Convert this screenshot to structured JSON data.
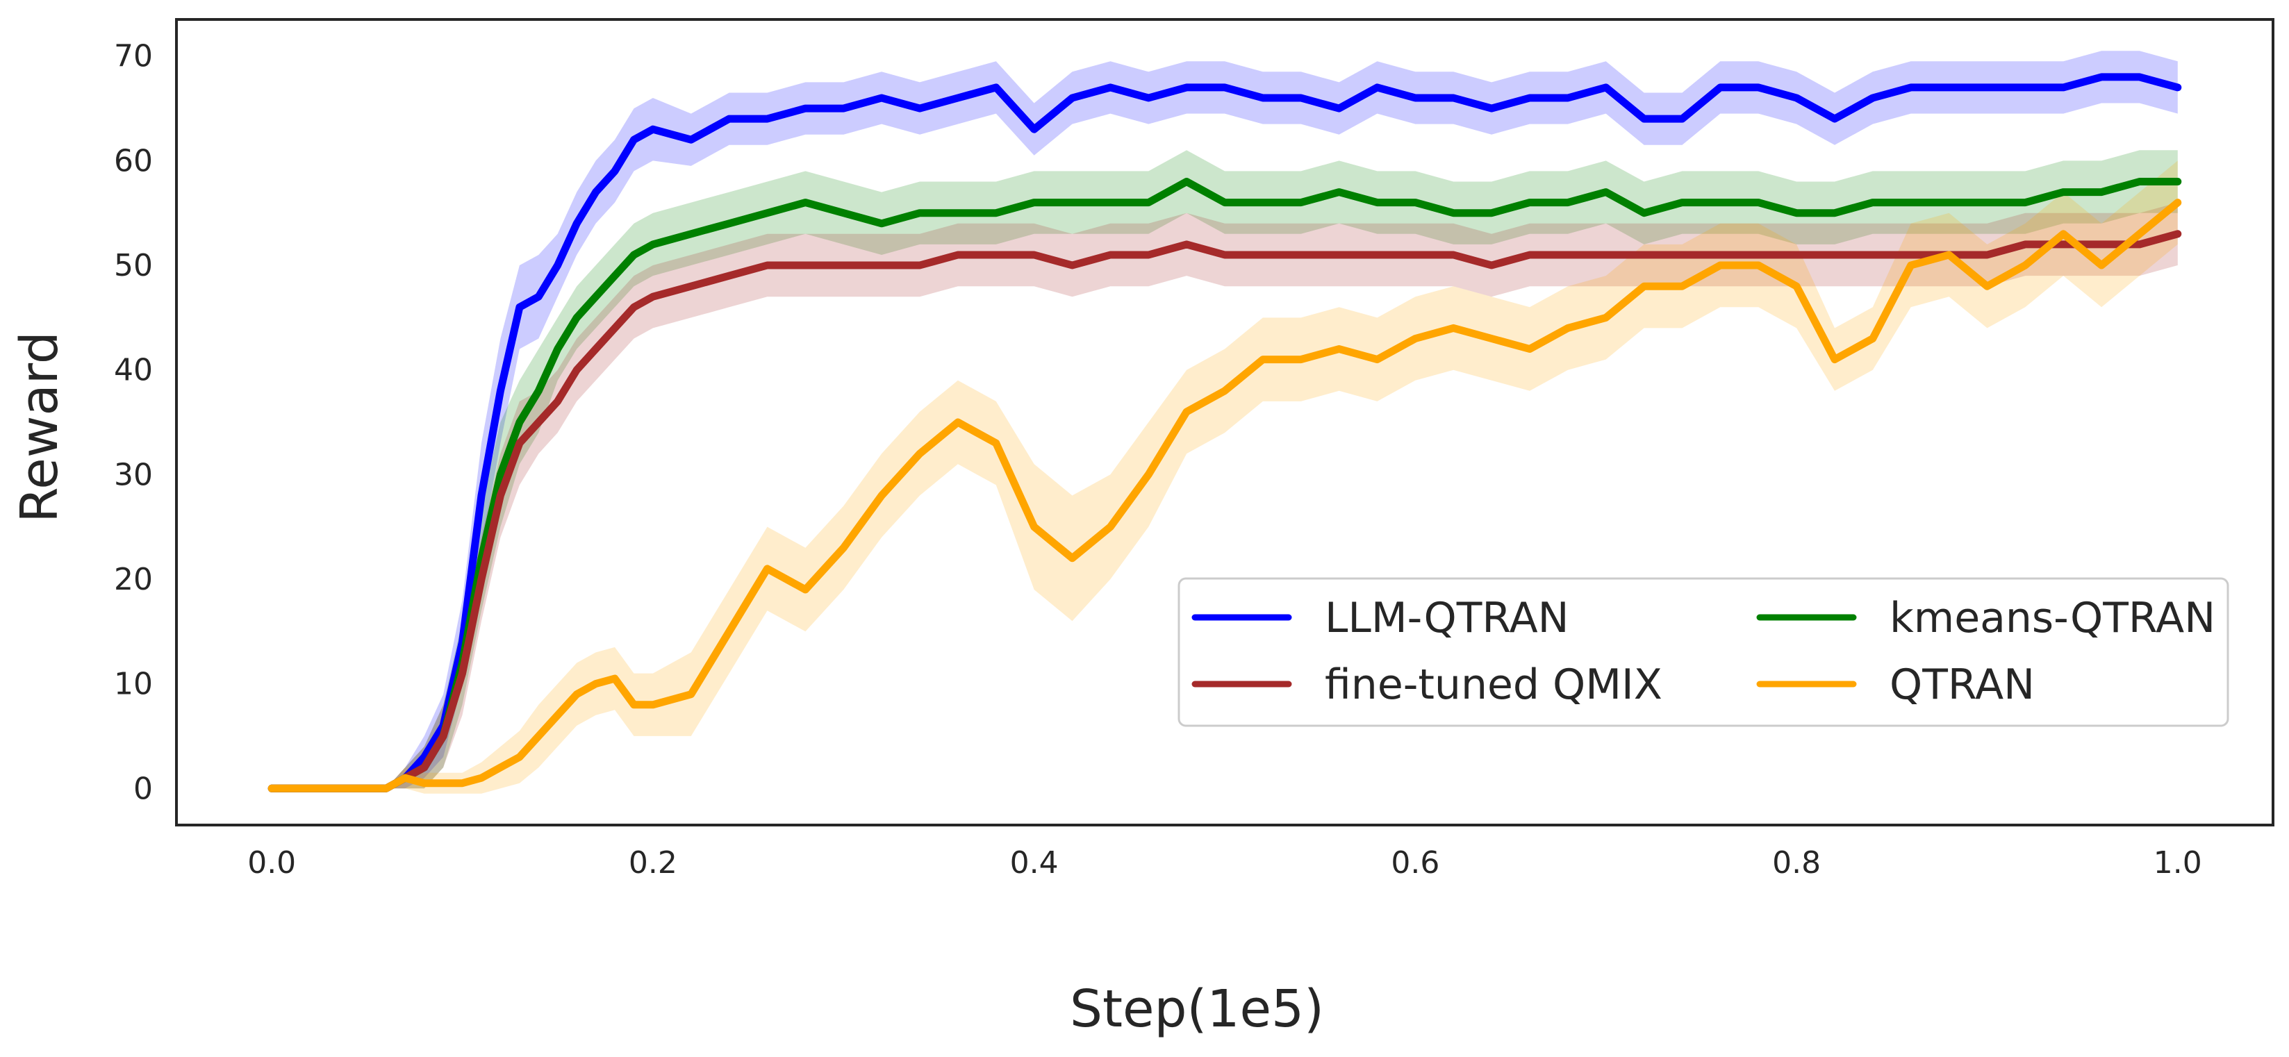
{
  "chart_data": {
    "type": "line",
    "title": "",
    "xlabel": "Step(1e5)",
    "ylabel": "Reward",
    "xlim": [
      -0.05,
      1.05
    ],
    "ylim": [
      -3.5,
      73.5
    ],
    "xticks": [
      0.0,
      0.2,
      0.4,
      0.6,
      0.8,
      1.0
    ],
    "xtick_labels": [
      "0.0",
      "0.2",
      "0.4",
      "0.6",
      "0.8",
      "1.0"
    ],
    "yticks": [
      0,
      10,
      20,
      30,
      40,
      50,
      60,
      70
    ],
    "ytick_labels": [
      "0",
      "10",
      "20",
      "30",
      "40",
      "50",
      "60",
      "70"
    ],
    "grid": false,
    "legend_position": "lower-right",
    "legend_columns": 2,
    "x": [
      0.0,
      0.02,
      0.04,
      0.06,
      0.07,
      0.08,
      0.09,
      0.1,
      0.11,
      0.12,
      0.13,
      0.14,
      0.15,
      0.16,
      0.17,
      0.18,
      0.19,
      0.2,
      0.22,
      0.24,
      0.26,
      0.28,
      0.3,
      0.32,
      0.34,
      0.36,
      0.38,
      0.4,
      0.42,
      0.44,
      0.46,
      0.48,
      0.5,
      0.52,
      0.54,
      0.56,
      0.58,
      0.6,
      0.62,
      0.64,
      0.66,
      0.68,
      0.7,
      0.72,
      0.74,
      0.76,
      0.78,
      0.8,
      0.82,
      0.84,
      0.86,
      0.88,
      0.9,
      0.92,
      0.94,
      0.96,
      0.98,
      1.0
    ],
    "series": [
      {
        "name": "LLM-QTRAN",
        "color": "#0000ff",
        "values": [
          0,
          0,
          0,
          0,
          1,
          3,
          6,
          14,
          28,
          38,
          46,
          47,
          50,
          54,
          57,
          59,
          62,
          63,
          62,
          64,
          64,
          65,
          65,
          66,
          65,
          66,
          67,
          63,
          66,
          67,
          66,
          67,
          67,
          66,
          66,
          65,
          67,
          66,
          66,
          65,
          66,
          66,
          67,
          64,
          64,
          67,
          67,
          66,
          64,
          66,
          67,
          67,
          67,
          67,
          67,
          68,
          68,
          67
        ],
        "band": [
          0,
          0,
          0,
          0,
          1,
          2,
          3,
          4,
          5,
          5,
          4,
          4,
          3,
          3,
          3,
          3,
          3,
          3,
          2.5,
          2.5,
          2.5,
          2.5,
          2.5,
          2.5,
          2.5,
          2.5,
          2.5,
          2.5,
          2.5,
          2.5,
          2.5,
          2.5,
          2.5,
          2.5,
          2.5,
          2.5,
          2.5,
          2.5,
          2.5,
          2.5,
          2.5,
          2.5,
          2.5,
          2.5,
          2.5,
          2.5,
          2.5,
          2.5,
          2.5,
          2.5,
          2.5,
          2.5,
          2.5,
          2.5,
          2.5,
          2.5,
          2.5,
          2.5
        ]
      },
      {
        "name": "kmeans-QTRAN",
        "color": "#008000",
        "values": [
          0,
          0,
          0,
          0,
          1,
          2,
          5,
          12,
          22,
          30,
          35,
          38,
          42,
          45,
          47,
          49,
          51,
          52,
          53,
          54,
          55,
          56,
          55,
          54,
          55,
          55,
          55,
          56,
          56,
          56,
          56,
          58,
          56,
          56,
          56,
          57,
          56,
          56,
          55,
          55,
          56,
          56,
          57,
          55,
          56,
          56,
          56,
          55,
          55,
          56,
          56,
          56,
          56,
          56,
          57,
          57,
          58,
          58
        ],
        "band": [
          0,
          0,
          0,
          0,
          1,
          2,
          3,
          4,
          5,
          5,
          4,
          4,
          3,
          3,
          3,
          3,
          3,
          3,
          3,
          3,
          3,
          3,
          3,
          3,
          3,
          3,
          3,
          3,
          3,
          3,
          3,
          3,
          3,
          3,
          3,
          3,
          3,
          3,
          3,
          3,
          3,
          3,
          3,
          3,
          3,
          3,
          3,
          3,
          3,
          3,
          3,
          3,
          3,
          3,
          3,
          3,
          3,
          3
        ]
      },
      {
        "name": "fine-tuned QMIX",
        "color": "#a52a2a",
        "values": [
          0,
          0,
          0,
          0,
          1,
          2,
          5,
          11,
          20,
          28,
          33,
          35,
          37,
          40,
          42,
          44,
          46,
          47,
          48,
          49,
          50,
          50,
          50,
          50,
          50,
          51,
          51,
          51,
          50,
          51,
          51,
          52,
          51,
          51,
          51,
          51,
          51,
          51,
          51,
          50,
          51,
          51,
          51,
          51,
          51,
          51,
          51,
          51,
          51,
          51,
          51,
          51,
          51,
          52,
          52,
          52,
          52,
          53
        ],
        "band": [
          0,
          0,
          0,
          0,
          1,
          2,
          3,
          4,
          4,
          4,
          4,
          3,
          3,
          3,
          3,
          3,
          3,
          3,
          3,
          3,
          3,
          3,
          3,
          3,
          3,
          3,
          3,
          3,
          3,
          3,
          3,
          3,
          3,
          3,
          3,
          3,
          3,
          3,
          3,
          3,
          3,
          3,
          3,
          3,
          3,
          3,
          3,
          3,
          3,
          3,
          3,
          3,
          3,
          3,
          3,
          3,
          3,
          3
        ]
      },
      {
        "name": "QTRAN",
        "color": "#ffa500",
        "values": [
          0,
          0,
          0,
          0,
          1,
          0.5,
          0.5,
          0.5,
          1,
          2,
          3,
          5,
          7,
          9,
          10,
          10.5,
          8,
          8,
          9,
          15,
          21,
          19,
          23,
          28,
          32,
          35,
          33,
          25,
          22,
          25,
          30,
          36,
          38,
          41,
          41,
          42,
          41,
          43,
          44,
          43,
          42,
          44,
          45,
          48,
          48,
          50,
          50,
          48,
          41,
          43,
          50,
          51,
          48,
          50,
          53,
          50,
          53,
          56
        ],
        "band": [
          0,
          0,
          0,
          0,
          1,
          1,
          1,
          1,
          1.5,
          2,
          2.5,
          3,
          3,
          3,
          3,
          3,
          3,
          3,
          4,
          4,
          4,
          4,
          4,
          4,
          4,
          4,
          4,
          6,
          6,
          5,
          5,
          4,
          4,
          4,
          4,
          4,
          4,
          4,
          4,
          4,
          4,
          4,
          4,
          4,
          4,
          4,
          4,
          4,
          3,
          3,
          4,
          4,
          4,
          4,
          4,
          4,
          4,
          4
        ]
      }
    ]
  }
}
